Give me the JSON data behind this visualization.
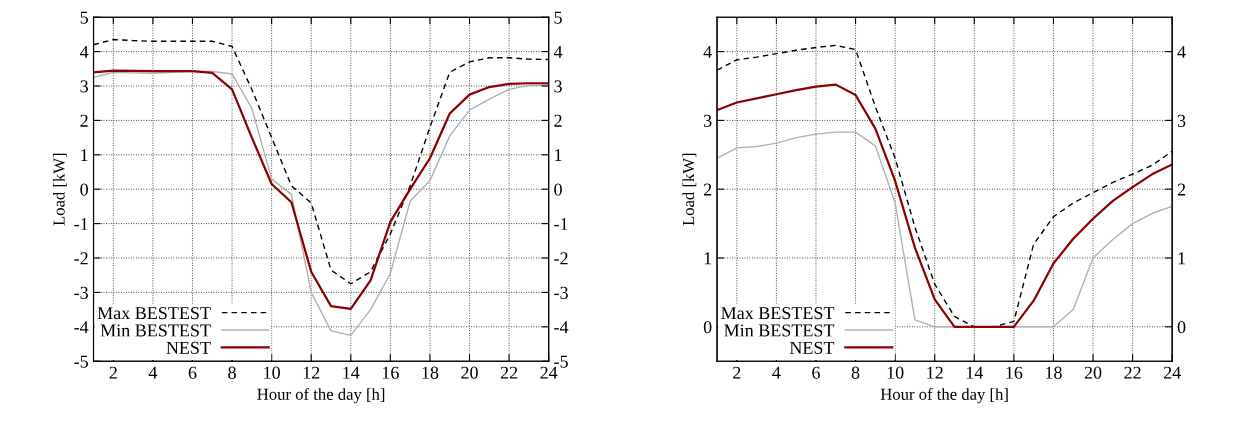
{
  "chart_data": [
    {
      "type": "line",
      "xlabel": "Hour of the day [h]",
      "ylabel": "Load [kW]",
      "x": [
        1,
        2,
        3,
        4,
        5,
        6,
        7,
        8,
        9,
        10,
        11,
        12,
        13,
        14,
        15,
        16,
        17,
        18,
        19,
        20,
        21,
        22,
        23,
        24
      ],
      "series": [
        {
          "name": "Max BESTEST",
          "color": "#000000",
          "line_style": "dashed",
          "values": [
            4.2,
            4.35,
            4.32,
            4.3,
            4.3,
            4.3,
            4.3,
            4.15,
            2.9,
            1.5,
            0.1,
            -0.4,
            -2.35,
            -2.75,
            -2.4,
            -1.3,
            0.1,
            1.8,
            3.4,
            3.7,
            3.82,
            3.82,
            3.78,
            3.77
          ]
        },
        {
          "name": "Min BESTEST",
          "color": "#b0b0b0",
          "line_style": "solid",
          "values": [
            3.25,
            3.4,
            3.38,
            3.37,
            3.4,
            3.42,
            3.42,
            3.35,
            2.35,
            0.3,
            -0.15,
            -3.0,
            -4.12,
            -4.25,
            -3.5,
            -2.45,
            -0.35,
            0.25,
            1.55,
            2.3,
            2.62,
            2.9,
            3.02,
            3.02
          ]
        },
        {
          "name": "NEST",
          "color": "#8b0000",
          "line_style": "solid",
          "values": [
            3.4,
            3.45,
            3.44,
            3.43,
            3.43,
            3.43,
            3.38,
            2.9,
            1.5,
            0.15,
            -0.38,
            -2.4,
            -3.4,
            -3.48,
            -2.65,
            -0.95,
            0.0,
            0.9,
            2.2,
            2.75,
            2.97,
            3.06,
            3.08,
            3.08
          ]
        }
      ],
      "xlim": [
        1,
        24
      ],
      "xticks": [
        2,
        4,
        6,
        8,
        10,
        12,
        14,
        16,
        18,
        20,
        22,
        24
      ],
      "ylim": [
        -5,
        5
      ],
      "yticks": [
        -5,
        -4,
        -3,
        -2,
        -1,
        0,
        1,
        2,
        3,
        4,
        5
      ],
      "y2lim": [
        -5,
        5
      ],
      "y2ticks": [
        -5,
        -4,
        -3,
        -2,
        -1,
        0,
        1,
        2,
        3,
        4,
        5
      ],
      "grid": true,
      "legend": "bottom left",
      "marker": "none"
    },
    {
      "type": "line",
      "xlabel": "Hour of the day [h]",
      "ylabel": "Load [kW]",
      "x": [
        1,
        2,
        3,
        4,
        5,
        6,
        7,
        8,
        9,
        10,
        11,
        12,
        13,
        14,
        15,
        16,
        17,
        18,
        19,
        20,
        21,
        22,
        23,
        24
      ],
      "series": [
        {
          "name": "Max BESTEST",
          "color": "#000000",
          "line_style": "dashed",
          "values": [
            3.73,
            3.88,
            3.92,
            3.97,
            4.02,
            4.06,
            4.09,
            4.03,
            3.2,
            2.45,
            1.45,
            0.62,
            0.15,
            0.0,
            0.0,
            0.08,
            1.2,
            1.6,
            1.8,
            1.95,
            2.1,
            2.22,
            2.35,
            2.55
          ]
        },
        {
          "name": "Min BESTEST",
          "color": "#b0b0b0",
          "line_style": "solid",
          "values": [
            2.45,
            2.6,
            2.62,
            2.67,
            2.75,
            2.8,
            2.83,
            2.83,
            2.63,
            1.8,
            0.1,
            0,
            0,
            0,
            0,
            0,
            0,
            0,
            0.25,
            1.0,
            1.27,
            1.5,
            1.65,
            1.75
          ]
        },
        {
          "name": "NEST",
          "color": "#8b0000",
          "line_style": "solid",
          "values": [
            3.15,
            3.26,
            3.32,
            3.38,
            3.44,
            3.49,
            3.52,
            3.37,
            2.88,
            2.12,
            1.15,
            0.4,
            0.0,
            0,
            0,
            0,
            0.38,
            0.92,
            1.28,
            1.57,
            1.83,
            2.03,
            2.22,
            2.36
          ]
        }
      ],
      "xlim": [
        1,
        24
      ],
      "xticks": [
        2,
        4,
        6,
        8,
        10,
        12,
        14,
        16,
        18,
        20,
        22,
        24
      ],
      "ylim": [
        -0.5,
        4.5
      ],
      "yticks": [
        0,
        1,
        2,
        3,
        4
      ],
      "y2lim": [
        -0.5,
        4.5
      ],
      "y2ticks": [
        0,
        1,
        2,
        3,
        4
      ],
      "grid": true,
      "legend": "bottom left",
      "marker": "none"
    }
  ]
}
